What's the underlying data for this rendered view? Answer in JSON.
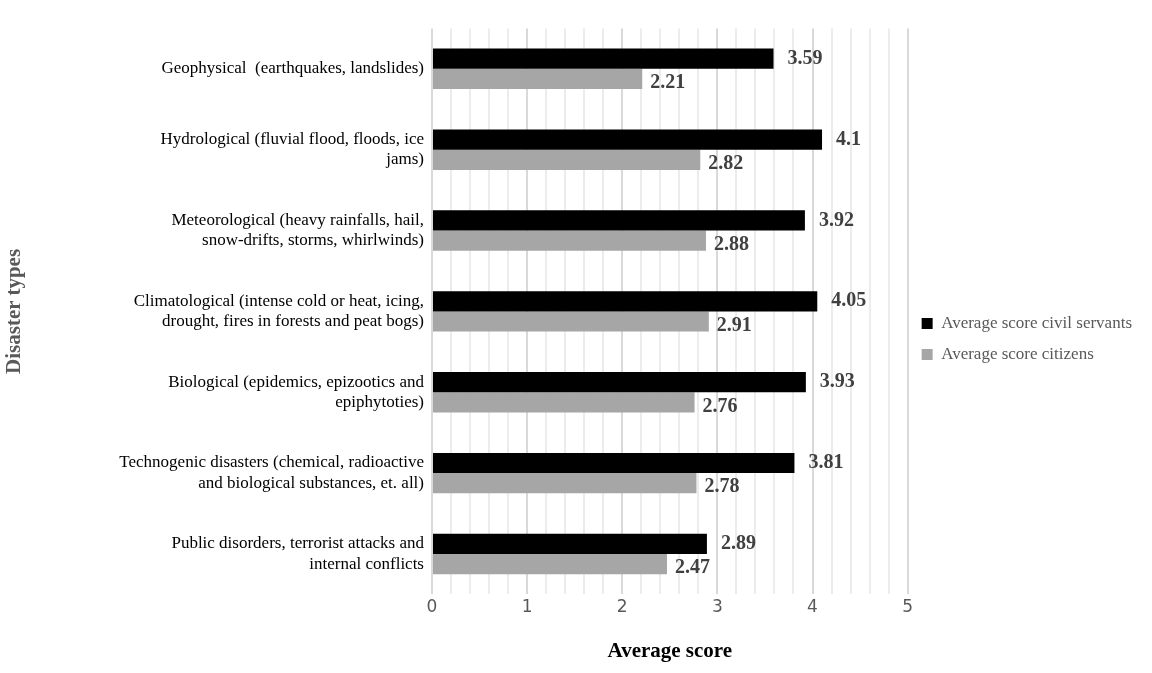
{
  "chart_data": {
    "type": "bar",
    "orientation": "horizontal",
    "xlabel": "Average score",
    "ylabel": "Disaster types",
    "categories": [
      "Geophysical  (earthquakes, landslides)",
      "Hydrological (fluvial flood, floods, ice jams)",
      "Meteorological (heavy rainfalls, hail, snow-drifts, storms, whirlwinds)",
      "Climatological (intense cold or heat, icing, drought, fires in forests and peat bogs)",
      "Biological (epidemics, epizootics and epiphytoties)",
      "Technogenic disasters (chemical, radioactive and biological substances, et. all)",
      "Public disorders, terrorist attacks and internal conflicts"
    ],
    "series": [
      {
        "name": "Average score civil servants",
        "color": "#000000",
        "values": [
          3.59,
          4.1,
          3.92,
          4.05,
          3.93,
          3.81,
          2.89
        ]
      },
      {
        "name": "Average score citizens",
        "color": "#a6a6a6",
        "values": [
          2.21,
          2.82,
          2.88,
          2.91,
          2.76,
          2.78,
          2.47
        ]
      }
    ],
    "xlim": [
      0,
      5
    ],
    "xticks": [
      0,
      {
        "value": 0.2,
        "label": null
      },
      {
        "value": 0.4,
        "label": null
      },
      {
        "value": 0.6,
        "label": null
      },
      {
        "value": 0.8,
        "label": null
      },
      1,
      {
        "value": 1.2,
        "label": null
      },
      {
        "value": 1.4,
        "label": null
      },
      {
        "value": 1.6,
        "label": null
      },
      {
        "value": 1.8,
        "label": null
      },
      2,
      {
        "value": 2.2,
        "label": null
      },
      {
        "value": 2.4,
        "label": null
      },
      {
        "value": 2.6,
        "label": null
      },
      {
        "value": 2.8,
        "label": null
      },
      3,
      {
        "value": 3.2,
        "label": null
      },
      {
        "value": 3.4,
        "label": null
      },
      {
        "value": 3.6,
        "label": null
      },
      {
        "value": 3.8,
        "label": null
      },
      4,
      {
        "value": 4.2,
        "label": null
      },
      {
        "value": 4.4,
        "label": null
      },
      {
        "value": 4.6,
        "label": null
      },
      {
        "value": 4.8,
        "label": null
      },
      5
    ],
    "grid": "x",
    "legend": "right",
    "data_labels": true
  }
}
